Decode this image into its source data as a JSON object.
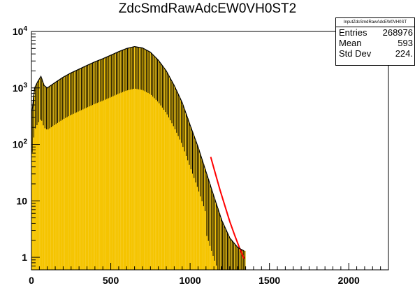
{
  "title": "ZdcSmdRawAdcEW0VH0ST2",
  "stats": {
    "name": "InputZdcSmdRawAdcEW0VH0ST",
    "entries_label": "Entries",
    "entries_value": "268976",
    "mean_label": "Mean",
    "mean_value": "593",
    "stddev_label": "Std Dev",
    "stddev_value": "224."
  },
  "colors": {
    "hist_fill": "#f5c400",
    "fit": "#ff0000",
    "axes": "#000000"
  },
  "chart_data": {
    "type": "area",
    "title": "ZdcSmdRawAdcEW0VH0ST2",
    "xlabel": "",
    "ylabel": "",
    "xlim": [
      0,
      2250
    ],
    "ylim": [
      0.6,
      10000
    ],
    "y_scale": "log",
    "grid": false,
    "x_ticks": [
      "0",
      "500",
      "1000",
      "1500",
      "2000"
    ],
    "y_ticks": [
      "1",
      "10",
      "10^2",
      "10^3",
      "10^4"
    ],
    "series": [
      {
        "kind": "histogram-envelope",
        "x": [
          5,
          20,
          40,
          60,
          80,
          100,
          150,
          200,
          250,
          300,
          350,
          400,
          450,
          500,
          550,
          600,
          650,
          700,
          750,
          800,
          850,
          900,
          950,
          1000,
          1050,
          1100,
          1150,
          1200,
          1250,
          1300,
          1340
        ],
        "y": [
          400,
          1000,
          1300,
          1600,
          1100,
          1000,
          1250,
          1550,
          1850,
          2150,
          2500,
          2900,
          3300,
          3800,
          4400,
          5000,
          5400,
          5100,
          4300,
          3100,
          2000,
          1100,
          550,
          220,
          90,
          33,
          12,
          4.5,
          2.2,
          1.5,
          1.3
        ]
      },
      {
        "kind": "fit",
        "x": [
          1130,
          1160,
          1190,
          1220,
          1250,
          1280,
          1310,
          1340
        ],
        "y": [
          60,
          30,
          15,
          8,
          4.3,
          2.5,
          1.5,
          0.95
        ]
      }
    ]
  }
}
